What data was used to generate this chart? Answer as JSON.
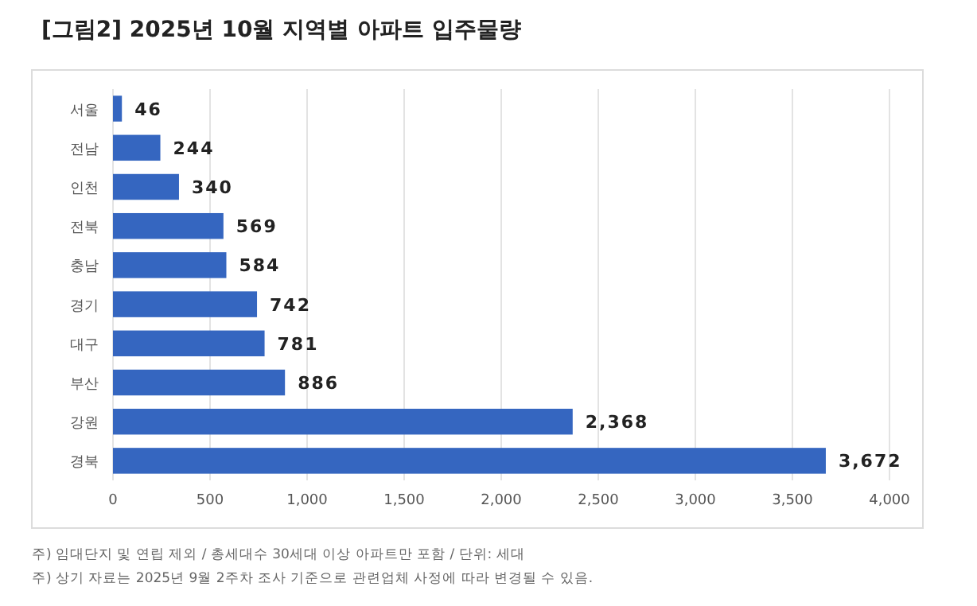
{
  "chart_data": {
    "type": "bar",
    "orientation": "horizontal",
    "title": "[그림2] 2025년 10월 지역별 아파트 입주물량",
    "categories": [
      "서울",
      "전남",
      "인천",
      "전북",
      "충남",
      "경기",
      "대구",
      "부산",
      "강원",
      "경북"
    ],
    "values": [
      46,
      244,
      340,
      569,
      584,
      742,
      781,
      886,
      2368,
      3672
    ],
    "value_labels": [
      "46",
      "244",
      "340",
      "569",
      "584",
      "742",
      "781",
      "886",
      "2,368",
      "3,672"
    ],
    "color": "#3566c0",
    "xlim": [
      0,
      4000
    ],
    "xticks": [
      0,
      500,
      {
        "value": 1000,
        "label": "1,000"
      },
      {
        "value": 1500,
        "label": "1,500"
      },
      {
        "value": 2000,
        "label": "2,000"
      },
      {
        "value": 2500,
        "label": "2,500"
      },
      {
        "value": 3000,
        "label": "3,000"
      },
      {
        "value": 3500,
        "label": "3,500"
      },
      {
        "value": 4000,
        "label": "4,000"
      }
    ],
    "grid": "x",
    "annotations": [
      "주) 임대단지 및 연립 제외 / 총세대수 30세대 이상 아파트만 포함 / 단위: 세대",
      "주) 상기 자료는 2025년 9월 2주차 조사 기준으로 관련업체 사정에 따라 변경될 수 있음."
    ]
  }
}
